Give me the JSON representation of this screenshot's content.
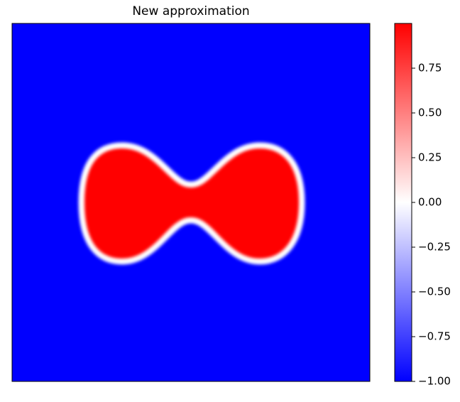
{
  "chart_data": {
    "type": "heatmap",
    "title": "New approximation",
    "colormap": [
      "#0000ff",
      "#ffffff",
      "#ff0000"
    ],
    "clim": [
      -1,
      1
    ],
    "cticks": [
      {
        "value": -1,
        "label": "−1.00"
      },
      {
        "value": -0.75,
        "label": "−0.75"
      },
      {
        "value": -0.5,
        "label": "−0.50"
      },
      {
        "value": -0.25,
        "label": "−0.25"
      },
      {
        "value": 0,
        "label": "0.00"
      },
      0.25,
      {
        "value": 0.5,
        "label": "0.50"
      },
      0.75
    ]
  }
}
